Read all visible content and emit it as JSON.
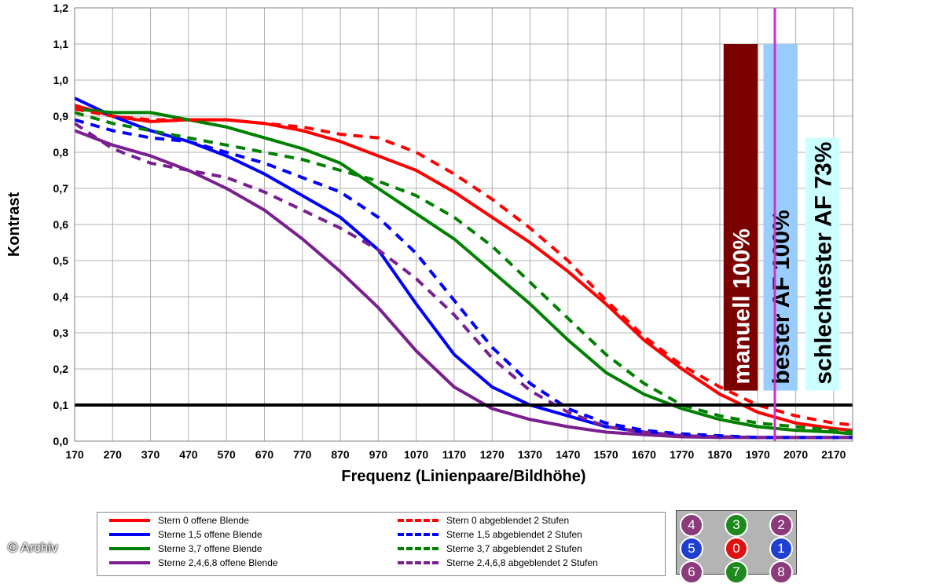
{
  "chart_data": {
    "type": "line",
    "title": "",
    "xlabel": "Frequenz (Linienpaare/Bildhöhe)",
    "ylabel": "Kontrast",
    "xlim": [
      170,
      2220
    ],
    "ylim": [
      0,
      1.2
    ],
    "x_ticks": [
      "170",
      "270",
      "370",
      "470",
      "570",
      "670",
      "770",
      "870",
      "970",
      "1070",
      "1170",
      "1270",
      "1370",
      "1470",
      "1570",
      "1670",
      "1770",
      "1870",
      "1970",
      "2070",
      "2170"
    ],
    "y_ticks": [
      "0,0",
      "0,1",
      "0,2",
      "0,3",
      "0,4",
      "0,5",
      "0,6",
      "0,7",
      "0,8",
      "0,9",
      "1,0",
      "1,1",
      "1,2"
    ],
    "grid": true,
    "reference_line": {
      "y": 0.1,
      "color": "#000000"
    },
    "marker_line": {
      "x": 2015,
      "color": "#cc33cc"
    },
    "bars": [
      {
        "label": "manuell 100%",
        "x_start": 1880,
        "x_end": 1970,
        "value": 1.1,
        "color": "#7b0000",
        "text_color": "#ffffff"
      },
      {
        "label": "bester AF 100%",
        "x_start": 1985,
        "x_end": 2075,
        "value": 1.1,
        "color": "#99ccff",
        "text_color": "#000000"
      },
      {
        "label": "schlechtester AF 73%",
        "x_start": 2095,
        "x_end": 2185,
        "value": 0.84,
        "color": "#ccffff",
        "text_color": "#000000"
      }
    ],
    "series": [
      {
        "name": "Stern 0 offene Blende",
        "color": "#ff0000",
        "dash": false,
        "x": [
          170,
          270,
          370,
          470,
          570,
          670,
          770,
          870,
          970,
          1070,
          1170,
          1270,
          1370,
          1470,
          1570,
          1670,
          1770,
          1870,
          1970,
          2070,
          2170,
          2220
        ],
        "y": [
          0.93,
          0.9,
          0.885,
          0.89,
          0.89,
          0.88,
          0.86,
          0.83,
          0.79,
          0.75,
          0.69,
          0.62,
          0.55,
          0.47,
          0.38,
          0.28,
          0.2,
          0.13,
          0.08,
          0.05,
          0.035,
          0.03
        ]
      },
      {
        "name": "Sterne 1,5 offene Blende",
        "color": "#0000ff",
        "dash": false,
        "x": [
          170,
          270,
          370,
          470,
          570,
          670,
          770,
          870,
          970,
          1070,
          1170,
          1270,
          1370,
          1470,
          1570,
          1670,
          1770,
          1870,
          1970,
          2070,
          2170,
          2220
        ],
        "y": [
          0.95,
          0.9,
          0.86,
          0.83,
          0.79,
          0.74,
          0.68,
          0.62,
          0.53,
          0.38,
          0.24,
          0.15,
          0.1,
          0.07,
          0.04,
          0.025,
          0.015,
          0.012,
          0.01,
          0.01,
          0.01,
          0.01
        ]
      },
      {
        "name": "Sterne 3,7 offene Blende",
        "color": "#008000",
        "dash": false,
        "x": [
          170,
          270,
          370,
          470,
          570,
          670,
          770,
          870,
          970,
          1070,
          1170,
          1270,
          1370,
          1470,
          1570,
          1670,
          1770,
          1870,
          1970,
          2070,
          2170,
          2220
        ],
        "y": [
          0.92,
          0.91,
          0.91,
          0.89,
          0.87,
          0.84,
          0.81,
          0.77,
          0.7,
          0.63,
          0.56,
          0.47,
          0.38,
          0.28,
          0.19,
          0.13,
          0.09,
          0.06,
          0.04,
          0.03,
          0.025,
          0.02
        ]
      },
      {
        "name": "Sterne 2,4,6,8 offene Blende",
        "color": "#7a1f8f",
        "dash": false,
        "x": [
          170,
          270,
          370,
          470,
          570,
          670,
          770,
          870,
          970,
          1070,
          1170,
          1270,
          1370,
          1470,
          1570,
          1670,
          1770,
          1870,
          1970,
          2070,
          2170,
          2220
        ],
        "y": [
          0.86,
          0.82,
          0.79,
          0.75,
          0.7,
          0.64,
          0.56,
          0.47,
          0.37,
          0.25,
          0.15,
          0.09,
          0.06,
          0.04,
          0.025,
          0.018,
          0.012,
          0.01,
          0.01,
          0.01,
          0.01,
          0.01
        ]
      },
      {
        "name": "Stern 0 abgeblendet 2 Stufen",
        "color": "#ff0000",
        "dash": true,
        "x": [
          170,
          270,
          370,
          470,
          570,
          670,
          770,
          870,
          970,
          1070,
          1170,
          1270,
          1370,
          1470,
          1570,
          1670,
          1770,
          1870,
          1970,
          2070,
          2170,
          2220
        ],
        "y": [
          0.92,
          0.9,
          0.89,
          0.89,
          0.89,
          0.88,
          0.87,
          0.85,
          0.84,
          0.8,
          0.74,
          0.67,
          0.59,
          0.5,
          0.39,
          0.29,
          0.21,
          0.15,
          0.1,
          0.07,
          0.05,
          0.045
        ]
      },
      {
        "name": "Sterne 1,5 abgeblendet 2 Stufen",
        "color": "#0000ff",
        "dash": true,
        "x": [
          170,
          270,
          370,
          470,
          570,
          670,
          770,
          870,
          970,
          1070,
          1170,
          1270,
          1370,
          1470,
          1570,
          1670,
          1770,
          1870,
          1970,
          2070,
          2170,
          2220
        ],
        "y": [
          0.89,
          0.86,
          0.84,
          0.83,
          0.8,
          0.77,
          0.73,
          0.69,
          0.62,
          0.52,
          0.39,
          0.26,
          0.16,
          0.09,
          0.05,
          0.03,
          0.02,
          0.015,
          0.01,
          0.01,
          0.01,
          0.01
        ]
      },
      {
        "name": "Sterne 3,7 abgeblendet 2 Stufen",
        "color": "#008000",
        "dash": true,
        "x": [
          170,
          270,
          370,
          470,
          570,
          670,
          770,
          870,
          970,
          1070,
          1170,
          1270,
          1370,
          1470,
          1570,
          1670,
          1770,
          1870,
          1970,
          2070,
          2170,
          2220
        ],
        "y": [
          0.91,
          0.88,
          0.86,
          0.84,
          0.82,
          0.8,
          0.78,
          0.75,
          0.72,
          0.68,
          0.62,
          0.54,
          0.44,
          0.34,
          0.24,
          0.16,
          0.1,
          0.07,
          0.05,
          0.04,
          0.03,
          0.025
        ]
      },
      {
        "name": "Sterne 2,4,6,8 abgeblendet 2 Stufen",
        "color": "#7a1f8f",
        "dash": true,
        "x": [
          170,
          270,
          370,
          470,
          570,
          670,
          770,
          870,
          970,
          1070,
          1170,
          1270,
          1370,
          1470,
          1570,
          1670,
          1770,
          1870,
          1970,
          2070,
          2170,
          2220
        ],
        "y": [
          0.88,
          0.81,
          0.77,
          0.75,
          0.73,
          0.69,
          0.64,
          0.59,
          0.53,
          0.45,
          0.35,
          0.23,
          0.14,
          0.08,
          0.04,
          0.025,
          0.015,
          0.012,
          0.01,
          0.01,
          0.01,
          0.01
        ]
      }
    ]
  },
  "star_map": {
    "stars": [
      {
        "label": "4",
        "color": "#8b3a7a"
      },
      {
        "label": "3",
        "color": "#1e8a1e"
      },
      {
        "label": "2",
        "color": "#8b3a7a"
      },
      {
        "label": "5",
        "color": "#1f3fd0"
      },
      {
        "label": "0",
        "color": "#e01010"
      },
      {
        "label": "1",
        "color": "#1f3fd0"
      },
      {
        "label": "6",
        "color": "#8b3a7a"
      },
      {
        "label": "7",
        "color": "#1e8a1e"
      },
      {
        "label": "8",
        "color": "#8b3a7a"
      }
    ]
  },
  "credit": "© Archiv"
}
